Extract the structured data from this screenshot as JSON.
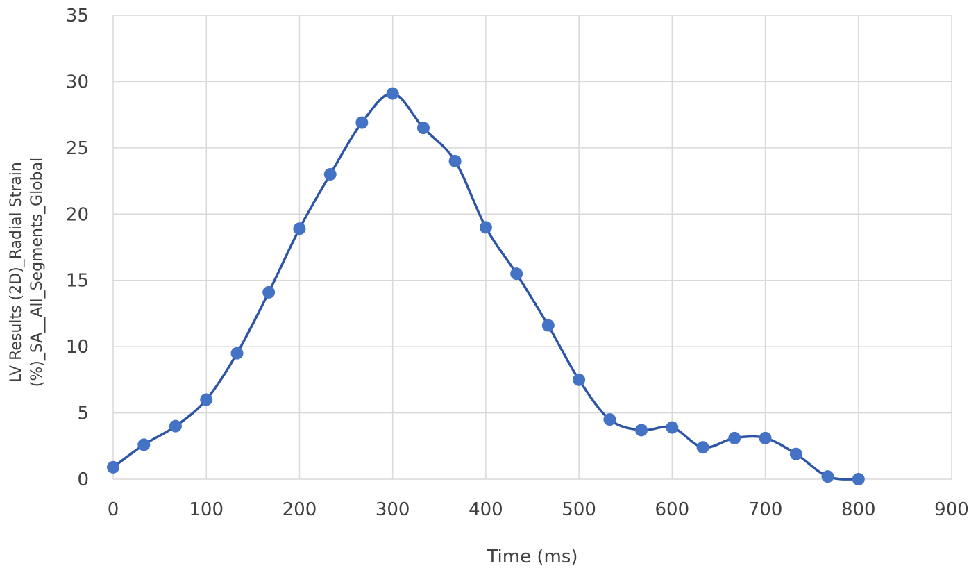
{
  "chart_data": {
    "type": "line",
    "title": "",
    "xlabel": "Time (ms)",
    "ylabel_lines": [
      "LV Results (2D)_Radial Strain",
      "(%)_SA__All_Segments_Global"
    ],
    "xlim": [
      0,
      900
    ],
    "ylim": [
      0,
      35
    ],
    "x_ticks": [
      0,
      100,
      200,
      300,
      400,
      500,
      600,
      700,
      800,
      900
    ],
    "y_ticks": [
      0,
      5,
      10,
      15,
      20,
      25,
      30,
      35
    ],
    "grid": true,
    "smooth": true,
    "marker": "circle",
    "colors": {
      "line": "#2e55a5",
      "marker": "#4472c4",
      "grid": "#d9d9d9",
      "text": "#404040"
    },
    "series": [
      {
        "x": [
          0,
          33,
          67,
          100,
          133,
          167,
          200,
          233,
          267,
          300,
          333,
          367,
          400,
          433,
          467,
          500,
          533,
          567,
          600,
          633,
          667,
          700,
          733,
          767,
          800
        ],
        "y": [
          0.9,
          2.6,
          4.0,
          6.0,
          9.5,
          14.1,
          18.9,
          23.0,
          26.9,
          29.1,
          26.5,
          24.0,
          19.0,
          15.5,
          11.6,
          7.5,
          4.5,
          3.7,
          3.9,
          2.4,
          3.1,
          3.1,
          1.9,
          0.2,
          0.0
        ]
      }
    ]
  }
}
